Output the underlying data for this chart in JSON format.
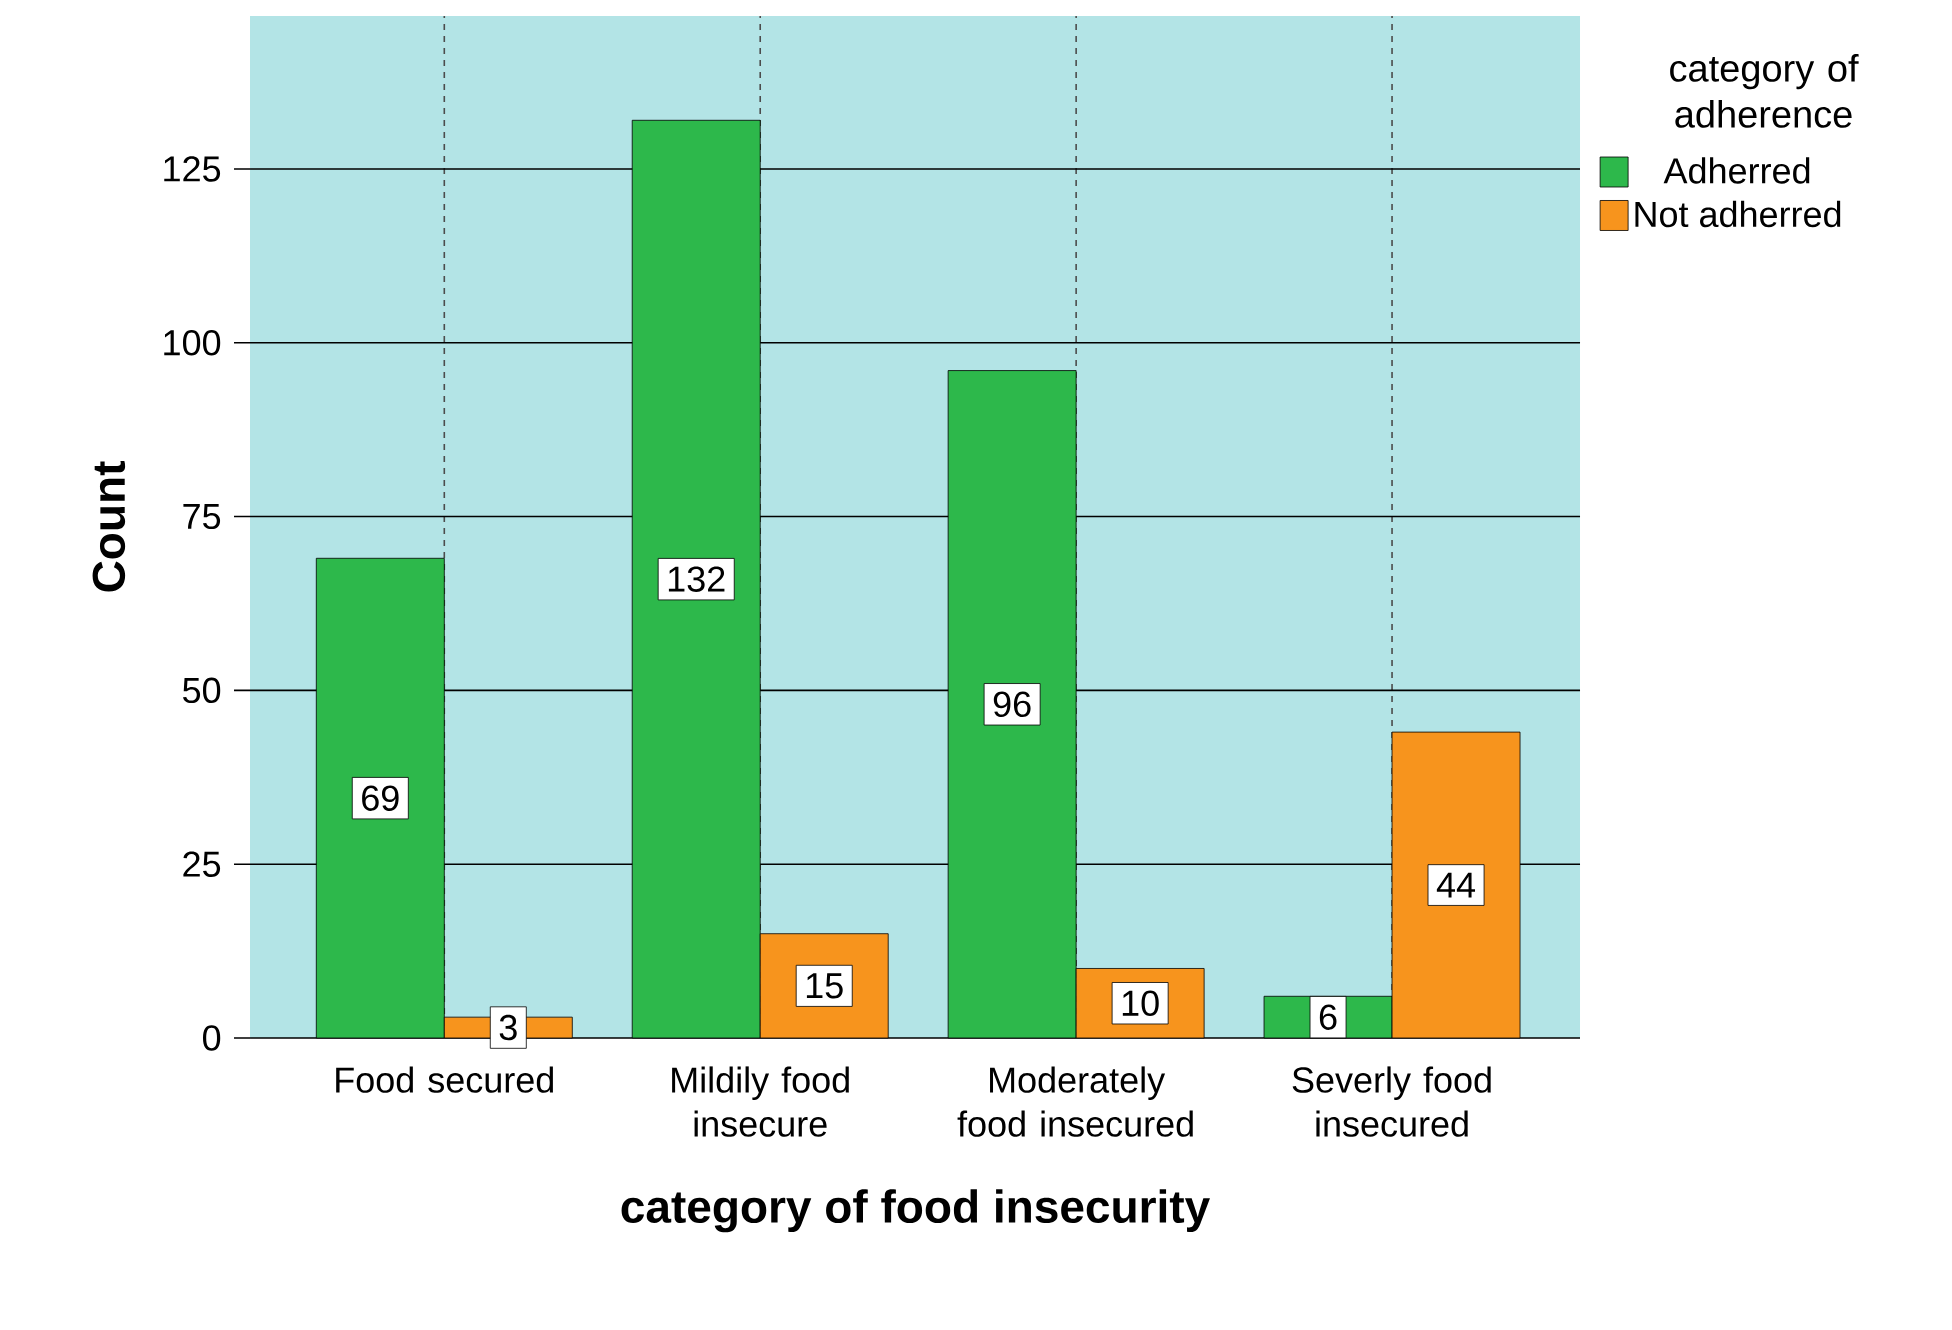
{
  "chart_data": {
    "type": "bar",
    "xlabel": "category of food insecurity",
    "ylabel": "Count",
    "legend_title": "category of adherence",
    "categories": [
      "Food secured",
      "Mildily food insecure",
      "Moderately food insecured",
      "Severly food insecured"
    ],
    "series": [
      {
        "name": "Adherred",
        "color": "#2db84b",
        "values": [
          69,
          132,
          96,
          6
        ]
      },
      {
        "name": "Not adherred",
        "color": "#f7941d",
        "values": [
          3,
          15,
          10,
          44
        ]
      }
    ],
    "ylim": [
      0,
      147
    ],
    "yticks": [
      0,
      25,
      50,
      75,
      100,
      125
    ],
    "grid": true,
    "legend": "top right",
    "data_labels": true
  }
}
